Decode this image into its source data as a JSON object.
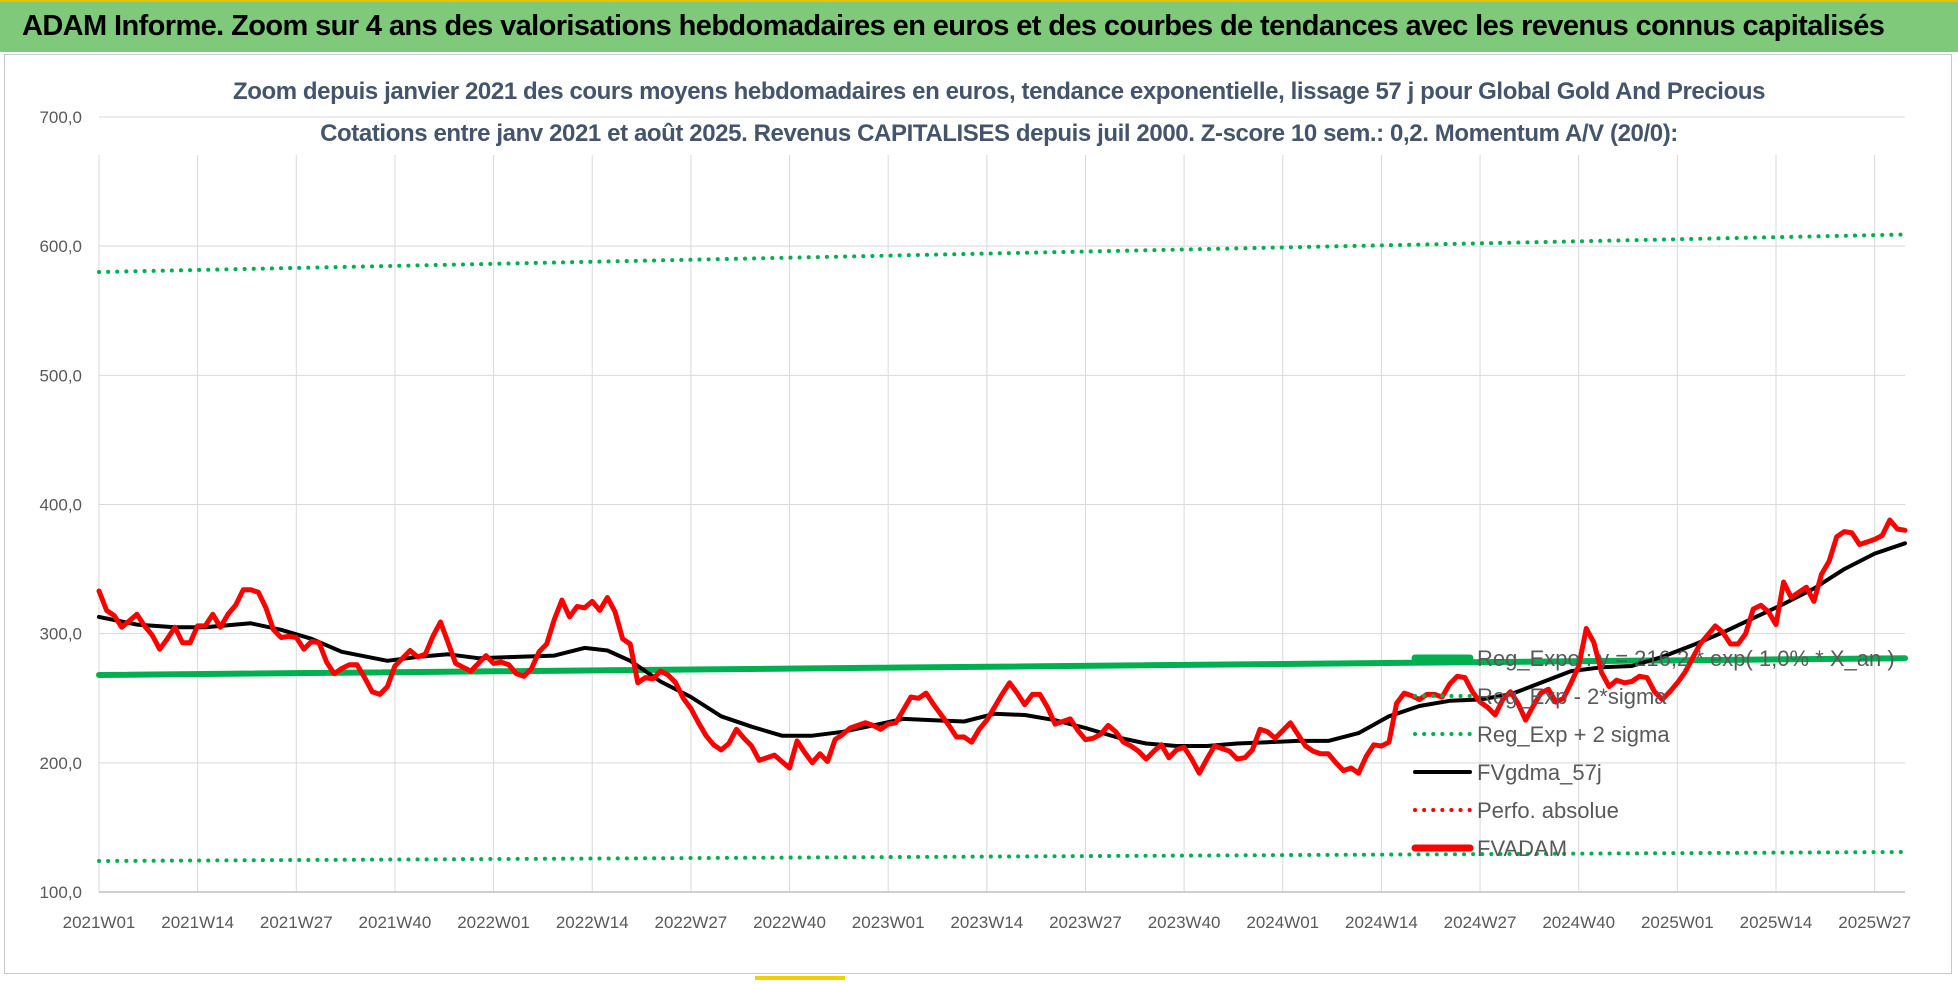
{
  "header": {
    "title": "ADAM Informe. Zoom sur 4 ans des valorisations hebdomadaires en euros et des courbes de tendances avec les revenus connus capitalisés"
  },
  "colors": {
    "banner": "#7ec97a",
    "reg_expo": "#00b050",
    "fv_gdma": "#000000",
    "fvadam": "#ff0000",
    "text": "#44546a",
    "grid": "#d9d9d9"
  },
  "chart_data": {
    "type": "line",
    "title_line1": "Zoom depuis janvier 2021 des cours moyens hebdomadaires en euros, tendance exponentielle, lissage 57 j pour Global Gold And Precious",
    "title_line2": "Cotations entre janv 2021 et août 2025. Revenus CAPITALISES depuis juil 2000. Z-score 10 sem.: 0,2. Momentum A/V (20/0):",
    "xlabel": "",
    "ylabel": "",
    "ylim": [
      100,
      700
    ],
    "yticks": [
      "100,0",
      "200,0",
      "300,0",
      "400,0",
      "500,0",
      "600,0",
      "700,0"
    ],
    "x_tick_labels": [
      "2021W01",
      "2021W14",
      "2021W27",
      "2021W40",
      "2022W01",
      "2022W14",
      "2022W27",
      "2022W40",
      "2023W01",
      "2023W14",
      "2023W27",
      "2023W40",
      "2024W01",
      "2024W14",
      "2024W27",
      "2024W40",
      "2025W01",
      "2025W14",
      "2025W27"
    ],
    "x_tick_weeks": [
      0,
      13,
      26,
      39,
      52,
      65,
      78,
      91,
      104,
      117,
      130,
      143,
      156,
      169,
      182,
      195,
      208,
      221,
      234
    ],
    "weeks_total": 239,
    "grid": true,
    "legend_placement": "right",
    "series": [
      {
        "name": "Reg_Expo : y = 216,2 * exp( 1,0% * X_an )",
        "style": "solid-thick",
        "color": "#00b050",
        "points": [
          [
            0,
            268
          ],
          [
            238,
            281
          ]
        ]
      },
      {
        "name": "Reg_Exp - 2*sigma",
        "style": "dotted",
        "color": "#00b050",
        "points": [
          [
            0,
            124
          ],
          [
            238,
            131
          ]
        ]
      },
      {
        "name": "Reg_Exp + 2 sigma",
        "style": "dotted",
        "color": "#00b050",
        "points": [
          [
            0,
            580
          ],
          [
            238,
            609
          ]
        ]
      },
      {
        "name": "FVgdma_57j",
        "style": "solid",
        "color": "#000000",
        "points": [
          [
            0,
            313
          ],
          [
            5,
            307
          ],
          [
            10,
            305
          ],
          [
            14,
            305
          ],
          [
            20,
            308
          ],
          [
            24,
            303
          ],
          [
            28,
            296
          ],
          [
            32,
            286
          ],
          [
            38,
            279
          ],
          [
            42,
            282
          ],
          [
            46,
            284
          ],
          [
            50,
            281
          ],
          [
            55,
            282
          ],
          [
            60,
            283
          ],
          [
            64,
            289
          ],
          [
            67,
            287
          ],
          [
            70,
            279
          ],
          [
            74,
            263
          ],
          [
            78,
            251
          ],
          [
            82,
            236
          ],
          [
            86,
            228
          ],
          [
            90,
            221
          ],
          [
            94,
            221
          ],
          [
            98,
            224
          ],
          [
            102,
            229
          ],
          [
            106,
            234
          ],
          [
            110,
            233
          ],
          [
            114,
            232
          ],
          [
            118,
            238
          ],
          [
            122,
            237
          ],
          [
            126,
            233
          ],
          [
            130,
            227
          ],
          [
            134,
            220
          ],
          [
            138,
            215
          ],
          [
            142,
            213
          ],
          [
            146,
            213
          ],
          [
            150,
            215
          ],
          [
            154,
            216
          ],
          [
            158,
            217
          ],
          [
            162,
            217
          ],
          [
            166,
            223
          ],
          [
            170,
            236
          ],
          [
            174,
            244
          ],
          [
            178,
            248
          ],
          [
            182,
            249
          ],
          [
            186,
            253
          ],
          [
            190,
            262
          ],
          [
            194,
            271
          ],
          [
            198,
            274
          ],
          [
            202,
            275
          ],
          [
            206,
            282
          ],
          [
            210,
            291
          ],
          [
            214,
            301
          ],
          [
            218,
            312
          ],
          [
            222,
            323
          ],
          [
            226,
            335
          ],
          [
            230,
            350
          ],
          [
            234,
            362
          ],
          [
            238,
            370
          ]
        ]
      },
      {
        "name": "Perfo. absolue",
        "style": "dotted",
        "color": "#ff0000",
        "points": []
      },
      {
        "name": "FVADAM",
        "style": "solid-thick",
        "color": "#ff0000",
        "points": [
          [
            0,
            333
          ],
          [
            1,
            318
          ],
          [
            2,
            314
          ],
          [
            3,
            305
          ],
          [
            4,
            310
          ],
          [
            5,
            315
          ],
          [
            6,
            306
          ],
          [
            7,
            299
          ],
          [
            8,
            288
          ],
          [
            9,
            296
          ],
          [
            10,
            305
          ],
          [
            11,
            293
          ],
          [
            12,
            293
          ],
          [
            13,
            306
          ],
          [
            14,
            306
          ],
          [
            15,
            315
          ],
          [
            16,
            305
          ],
          [
            17,
            315
          ],
          [
            18,
            322
          ],
          [
            19,
            334
          ],
          [
            20,
            334
          ],
          [
            21,
            332
          ],
          [
            22,
            320
          ],
          [
            23,
            303
          ],
          [
            24,
            297
          ],
          [
            25,
            298
          ],
          [
            26,
            297
          ],
          [
            27,
            288
          ],
          [
            28,
            294
          ],
          [
            29,
            293
          ],
          [
            30,
            278
          ],
          [
            31,
            269
          ],
          [
            32,
            273
          ],
          [
            33,
            276
          ],
          [
            34,
            276
          ],
          [
            35,
            266
          ],
          [
            36,
            255
          ],
          [
            37,
            253
          ],
          [
            38,
            259
          ],
          [
            39,
            275
          ],
          [
            40,
            281
          ],
          [
            41,
            287
          ],
          [
            42,
            282
          ],
          [
            43,
            284
          ],
          [
            44,
            298
          ],
          [
            45,
            309
          ],
          [
            46,
            293
          ],
          [
            47,
            277
          ],
          [
            48,
            274
          ],
          [
            49,
            271
          ],
          [
            50,
            277
          ],
          [
            51,
            283
          ],
          [
            52,
            277
          ],
          [
            53,
            278
          ],
          [
            54,
            276
          ],
          [
            55,
            269
          ],
          [
            56,
            267
          ],
          [
            57,
            273
          ],
          [
            58,
            286
          ],
          [
            59,
            292
          ],
          [
            60,
            311
          ],
          [
            61,
            326
          ],
          [
            62,
            313
          ],
          [
            63,
            321
          ],
          [
            64,
            320
          ],
          [
            65,
            325
          ],
          [
            66,
            318
          ],
          [
            67,
            328
          ],
          [
            68,
            317
          ],
          [
            69,
            296
          ],
          [
            70,
            292
          ],
          [
            71,
            262
          ],
          [
            72,
            266
          ],
          [
            73,
            265
          ],
          [
            74,
            271
          ],
          [
            75,
            268
          ],
          [
            76,
            262
          ],
          [
            77,
            250
          ],
          [
            78,
            242
          ],
          [
            79,
            231
          ],
          [
            80,
            221
          ],
          [
            81,
            214
          ],
          [
            82,
            210
          ],
          [
            83,
            215
          ],
          [
            84,
            226
          ],
          [
            85,
            219
          ],
          [
            86,
            213
          ],
          [
            87,
            202
          ],
          [
            88,
            204
          ],
          [
            89,
            206
          ],
          [
            90,
            201
          ],
          [
            91,
            196
          ],
          [
            92,
            217
          ],
          [
            93,
            208
          ],
          [
            94,
            200
          ],
          [
            95,
            207
          ],
          [
            96,
            201
          ],
          [
            97,
            218
          ],
          [
            98,
            222
          ],
          [
            99,
            227
          ],
          [
            100,
            229
          ],
          [
            101,
            231
          ],
          [
            102,
            229
          ],
          [
            103,
            226
          ],
          [
            104,
            230
          ],
          [
            105,
            231
          ],
          [
            106,
            241
          ],
          [
            107,
            251
          ],
          [
            108,
            250
          ],
          [
            109,
            254
          ],
          [
            110,
            245
          ],
          [
            111,
            237
          ],
          [
            112,
            229
          ],
          [
            113,
            220
          ],
          [
            114,
            220
          ],
          [
            115,
            216
          ],
          [
            116,
            226
          ],
          [
            117,
            233
          ],
          [
            118,
            243
          ],
          [
            119,
            253
          ],
          [
            120,
            262
          ],
          [
            121,
            254
          ],
          [
            122,
            245
          ],
          [
            123,
            253
          ],
          [
            124,
            253
          ],
          [
            125,
            243
          ],
          [
            126,
            230
          ],
          [
            127,
            232
          ],
          [
            128,
            234
          ],
          [
            129,
            225
          ],
          [
            130,
            218
          ],
          [
            131,
            219
          ],
          [
            132,
            222
          ],
          [
            133,
            229
          ],
          [
            134,
            224
          ],
          [
            135,
            216
          ],
          [
            136,
            213
          ],
          [
            137,
            209
          ],
          [
            138,
            203
          ],
          [
            139,
            209
          ],
          [
            140,
            214
          ],
          [
            141,
            204
          ],
          [
            142,
            210
          ],
          [
            143,
            212
          ],
          [
            144,
            203
          ],
          [
            145,
            192
          ],
          [
            146,
            203
          ],
          [
            147,
            213
          ],
          [
            148,
            211
          ],
          [
            149,
            209
          ],
          [
            150,
            203
          ],
          [
            151,
            204
          ],
          [
            152,
            210
          ],
          [
            153,
            226
          ],
          [
            154,
            224
          ],
          [
            155,
            219
          ],
          [
            156,
            225
          ],
          [
            157,
            231
          ],
          [
            158,
            222
          ],
          [
            159,
            213
          ],
          [
            160,
            209
          ],
          [
            161,
            207
          ],
          [
            162,
            207
          ],
          [
            163,
            200
          ],
          [
            164,
            194
          ],
          [
            165,
            196
          ],
          [
            166,
            192
          ],
          [
            167,
            205
          ],
          [
            168,
            214
          ],
          [
            169,
            213
          ],
          [
            170,
            216
          ],
          [
            171,
            246
          ],
          [
            172,
            254
          ],
          [
            173,
            252
          ],
          [
            174,
            249
          ],
          [
            175,
            253
          ],
          [
            176,
            253
          ],
          [
            177,
            251
          ],
          [
            178,
            261
          ],
          [
            179,
            267
          ],
          [
            180,
            266
          ],
          [
            181,
            255
          ],
          [
            182,
            247
          ],
          [
            183,
            243
          ],
          [
            184,
            237
          ],
          [
            185,
            249
          ],
          [
            186,
            255
          ],
          [
            187,
            246
          ],
          [
            188,
            233
          ],
          [
            189,
            244
          ],
          [
            190,
            254
          ],
          [
            191,
            257
          ],
          [
            192,
            247
          ],
          [
            193,
            250
          ],
          [
            194,
            262
          ],
          [
            195,
            275
          ],
          [
            196,
            304
          ],
          [
            197,
            293
          ],
          [
            198,
            270
          ],
          [
            199,
            259
          ],
          [
            200,
            264
          ],
          [
            201,
            262
          ],
          [
            202,
            263
          ],
          [
            203,
            267
          ],
          [
            204,
            266
          ],
          [
            205,
            255
          ],
          [
            206,
            249
          ],
          [
            207,
            255
          ],
          [
            208,
            262
          ],
          [
            209,
            270
          ],
          [
            210,
            281
          ],
          [
            211,
            292
          ],
          [
            212,
            299
          ],
          [
            213,
            306
          ],
          [
            214,
            301
          ],
          [
            215,
            292
          ],
          [
            216,
            292
          ],
          [
            217,
            300
          ],
          [
            218,
            319
          ],
          [
            219,
            322
          ],
          [
            220,
            317
          ],
          [
            221,
            307
          ],
          [
            222,
            340
          ],
          [
            223,
            328
          ],
          [
            224,
            332
          ],
          [
            225,
            336
          ],
          [
            226,
            325
          ],
          [
            227,
            346
          ],
          [
            228,
            356
          ],
          [
            229,
            375
          ],
          [
            230,
            379
          ],
          [
            231,
            378
          ],
          [
            232,
            369
          ],
          [
            233,
            371
          ],
          [
            234,
            373
          ],
          [
            235,
            376
          ],
          [
            236,
            388
          ],
          [
            237,
            381
          ],
          [
            238,
            380
          ]
        ]
      }
    ]
  }
}
